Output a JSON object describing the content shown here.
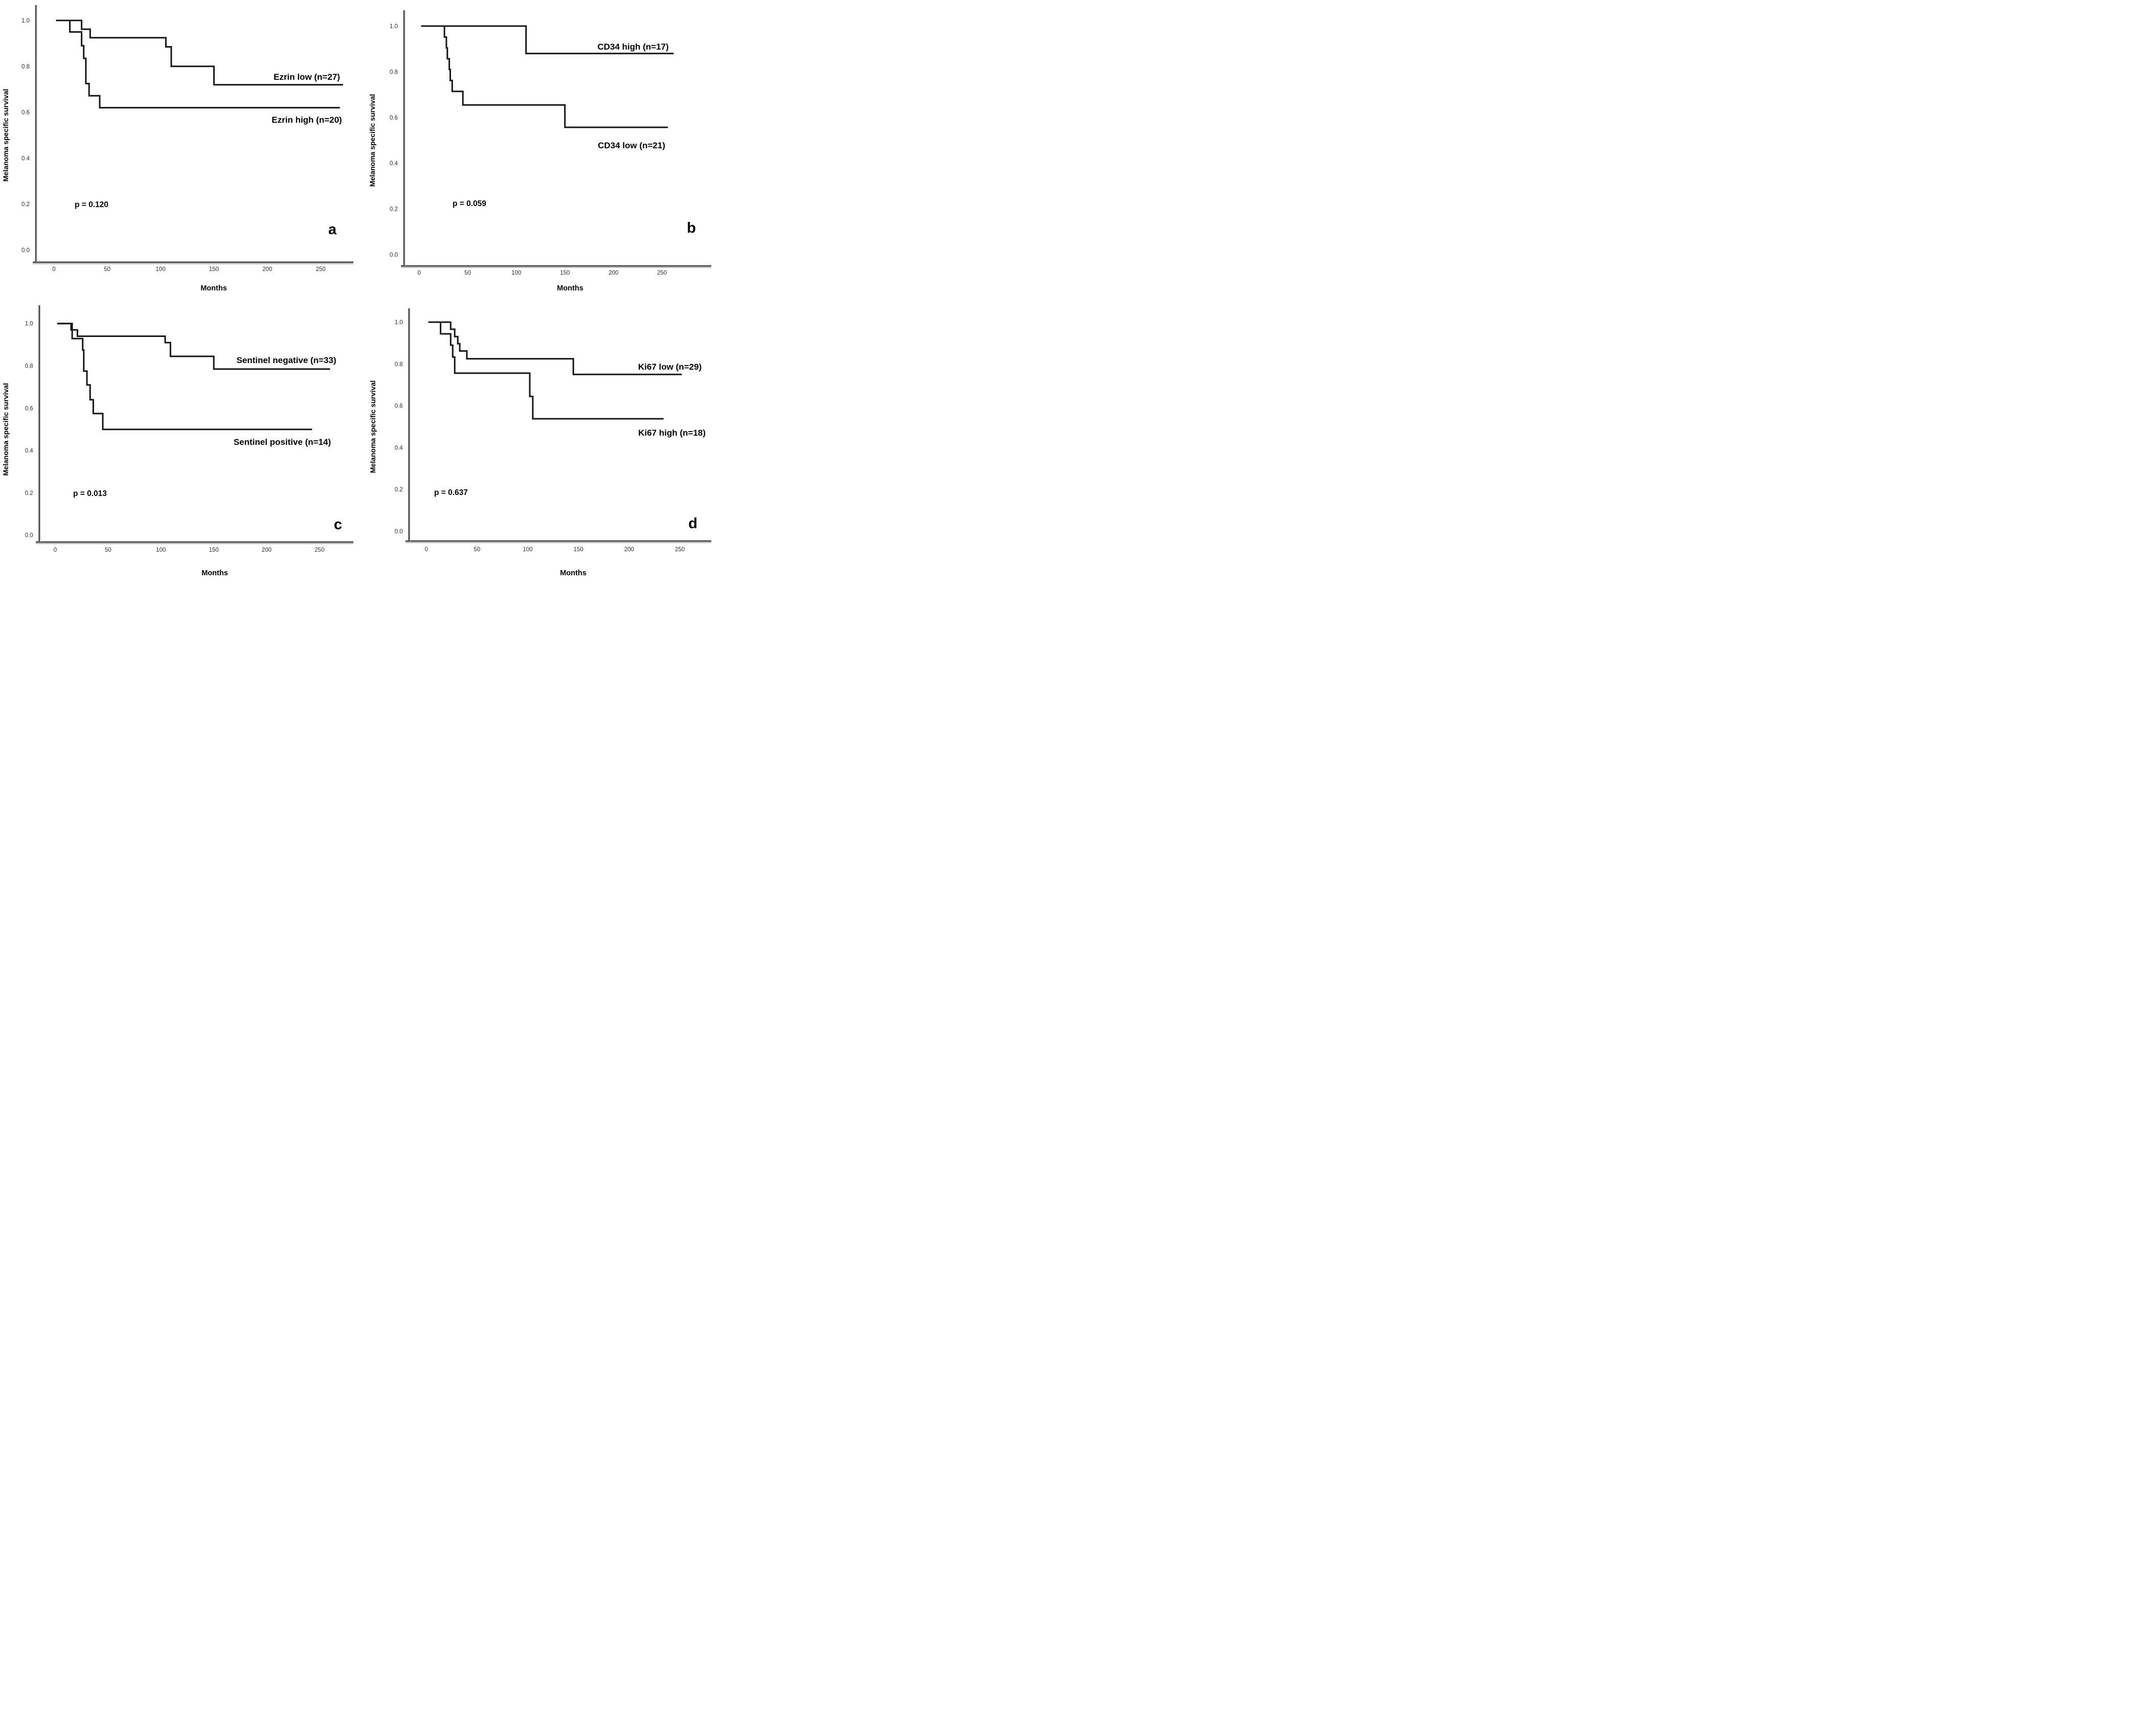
{
  "figure": {
    "background_color": "#ffffff",
    "curve_color": "#161616",
    "axis_color": "#474747",
    "axis_shadow_color": "#bdbdbd",
    "text_color": "#000000",
    "tick_text_color": "#2d2d2d"
  },
  "chart_data": [
    {
      "type": "line",
      "subtype": "kaplan-meier-step",
      "panel_letter": "a",
      "p_value_label": "p = 0.120",
      "xlabel": "Months",
      "ylabel": "Melanoma specific survival",
      "x_tick_labels": [
        "0",
        "50",
        "100",
        "150",
        "200",
        "250"
      ],
      "y_tick_labels": [
        "1.0",
        "0.8",
        "0.6",
        "0.4",
        "0.2",
        "0.0"
      ],
      "xlim": [
        0,
        270
      ],
      "ylim": [
        0.0,
        1.0
      ],
      "grid": false,
      "legend_position": "inline-labels",
      "series": [
        {
          "name": "ezrin-low",
          "label": "Ezrin low (n=27)",
          "n": 27,
          "start_month": 2,
          "end_month": 271,
          "steps": [
            [
              26,
              0.962
            ],
            [
              34,
              0.925
            ],
            [
              105,
              0.885
            ],
            [
              110,
              0.8
            ],
            [
              150,
              0.72
            ]
          ]
        },
        {
          "name": "ezrin-high",
          "label": "Ezrin high (n=20)",
          "n": 20,
          "start_month": 2,
          "end_month": 268,
          "steps": [
            [
              15,
              0.95
            ],
            [
              26,
              0.89
            ],
            [
              28,
              0.835
            ],
            [
              30,
              0.725
            ],
            [
              33,
              0.672
            ],
            [
              43,
              0.62
            ]
          ]
        }
      ]
    },
    {
      "type": "line",
      "subtype": "kaplan-meier-step",
      "panel_letter": "b",
      "p_value_label": "p = 0.059",
      "xlabel": "Months",
      "ylabel": "Melanoma specific survival",
      "x_tick_labels": [
        "0",
        "50",
        "100",
        "150",
        "200",
        "250"
      ],
      "y_tick_labels": [
        "1.0",
        "0.8",
        "0.6",
        "0.4",
        "0.2",
        "0.0"
      ],
      "xlim": [
        0,
        270
      ],
      "ylim": [
        0.0,
        1.0
      ],
      "grid": false,
      "legend_position": "inline-labels",
      "series": [
        {
          "name": "cd34-high",
          "label": "CD34 high (n=17)",
          "n": 17,
          "start_month": 2,
          "end_month": 262,
          "steps": [
            [
              110,
              0.88
            ]
          ]
        },
        {
          "name": "cd34-low",
          "label": "CD34 low (n=21)",
          "n": 21,
          "start_month": 2,
          "end_month": 256,
          "steps": [
            [
              26,
              0.952
            ],
            [
              28,
              0.905
            ],
            [
              29,
              0.857
            ],
            [
              31,
              0.81
            ],
            [
              32,
              0.762
            ],
            [
              34,
              0.714
            ],
            [
              45,
              0.655
            ],
            [
              150,
              0.557
            ]
          ]
        }
      ]
    },
    {
      "type": "line",
      "subtype": "kaplan-meier-step",
      "panel_letter": "c",
      "p_value_label": "p = 0.013",
      "xlabel": "Months",
      "ylabel": "Melanoma specific survival",
      "x_tick_labels": [
        "0",
        "50",
        "100",
        "150",
        "200",
        "250"
      ],
      "y_tick_labels": [
        "1.0",
        "0.8",
        "0.6",
        "0.4",
        "0.2",
        "0.0"
      ],
      "xlim": [
        0,
        270
      ],
      "ylim": [
        0.0,
        1.0
      ],
      "grid": false,
      "legend_position": "inline-labels",
      "series": [
        {
          "name": "sentinel-negative",
          "label": "Sentinel negative (n=33)",
          "n": 33,
          "start_month": 2,
          "end_month": 260,
          "steps": [
            [
              15,
              0.97
            ],
            [
              21,
              0.94
            ],
            [
              104,
              0.91
            ],
            [
              109,
              0.845
            ],
            [
              150,
              0.785
            ]
          ]
        },
        {
          "name": "sentinel-positive",
          "label": "Sentinel positive (n=14)",
          "n": 14,
          "start_month": 2,
          "end_month": 243,
          "steps": [
            [
              16,
              0.929
            ],
            [
              26,
              0.875
            ],
            [
              27,
              0.775
            ],
            [
              30,
              0.71
            ],
            [
              33,
              0.64
            ],
            [
              36,
              0.575
            ],
            [
              45,
              0.5
            ]
          ]
        }
      ]
    },
    {
      "type": "line",
      "subtype": "kaplan-meier-step",
      "panel_letter": "d",
      "p_value_label": "p = 0.637",
      "xlabel": "Months",
      "ylabel": "Melanoma specific survival",
      "x_tick_labels": [
        "0",
        "50",
        "100",
        "150",
        "200",
        "250"
      ],
      "y_tick_labels": [
        "1.0",
        "0.8",
        "0.6",
        "0.4",
        "0.2",
        "0.0"
      ],
      "xlim": [
        0,
        270
      ],
      "ylim": [
        0.0,
        1.0
      ],
      "grid": false,
      "legend_position": "inline-labels",
      "series": [
        {
          "name": "ki67-low",
          "label": "Ki67 low (n=29)",
          "n": 29,
          "start_month": 2,
          "end_month": 252,
          "steps": [
            [
              24,
              0.966
            ],
            [
              28,
              0.931
            ],
            [
              31,
              0.897
            ],
            [
              33,
              0.862
            ],
            [
              40,
              0.825
            ],
            [
              145,
              0.75
            ]
          ]
        },
        {
          "name": "ki67-high",
          "label": "Ki67 high (n=18)",
          "n": 18,
          "start_month": 2,
          "end_month": 234,
          "steps": [
            [
              14,
              0.944
            ],
            [
              24,
              0.89
            ],
            [
              26,
              0.833
            ],
            [
              28,
              0.756
            ],
            [
              102,
              0.645
            ],
            [
              105,
              0.538
            ]
          ]
        }
      ]
    }
  ]
}
